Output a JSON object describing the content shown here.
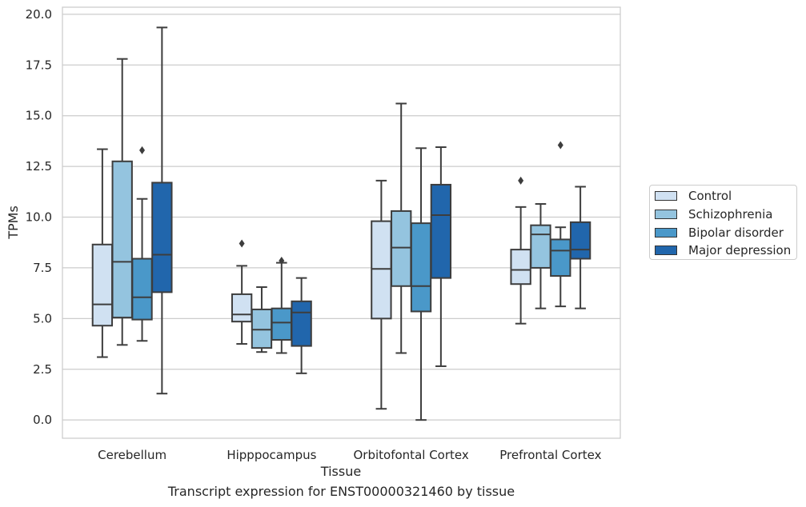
{
  "chart_data": {
    "type": "box",
    "title": "",
    "xlabel": "Tissue",
    "ylabel": "TPMs",
    "caption": "Transcript expression for ENST00000321460 by tissue",
    "ylim": [
      -0.9,
      20.35
    ],
    "yticks": [
      "0.0",
      "2.5",
      "5.0",
      "7.5",
      "10.0",
      "12.5",
      "15.0",
      "17.5",
      "20.0"
    ],
    "grid": "horizontal",
    "legend_position": "right",
    "categories": [
      "Cerebellum",
      "Hipppocampus",
      "Orbitofontal Cortex",
      "Prefrontal Cortex"
    ],
    "series": [
      {
        "name": "Control",
        "color": "#d0e1f2",
        "boxes": [
          {
            "whislo": 3.1,
            "q1": 4.65,
            "med": 5.7,
            "q3": 8.65,
            "whishi": 13.35,
            "fliers": []
          },
          {
            "whislo": 3.75,
            "q1": 4.85,
            "med": 5.2,
            "q3": 6.2,
            "whishi": 7.6,
            "fliers": [
              8.7
            ]
          },
          {
            "whislo": 0.55,
            "q1": 5.0,
            "med": 7.45,
            "q3": 9.8,
            "whishi": 11.8,
            "fliers": []
          },
          {
            "whislo": 4.75,
            "q1": 6.7,
            "med": 7.4,
            "q3": 8.4,
            "whishi": 10.5,
            "fliers": [
              11.8
            ]
          }
        ]
      },
      {
        "name": "Schizophrenia",
        "color": "#94c4df",
        "boxes": [
          {
            "whislo": 3.7,
            "q1": 5.05,
            "med": 7.8,
            "q3": 12.75,
            "whishi": 17.8,
            "fliers": []
          },
          {
            "whislo": 3.35,
            "q1": 3.55,
            "med": 4.45,
            "q3": 5.45,
            "whishi": 6.55,
            "fliers": []
          },
          {
            "whislo": 3.3,
            "q1": 6.6,
            "med": 8.5,
            "q3": 10.3,
            "whishi": 15.6,
            "fliers": []
          },
          {
            "whislo": 5.5,
            "q1": 7.5,
            "med": 9.15,
            "q3": 9.6,
            "whishi": 10.65,
            "fliers": []
          }
        ]
      },
      {
        "name": "Bipolar disorder",
        "color": "#4a98c9",
        "boxes": [
          {
            "whislo": 3.9,
            "q1": 4.95,
            "med": 6.05,
            "q3": 7.95,
            "whishi": 10.9,
            "fliers": [
              13.3
            ]
          },
          {
            "whislo": 3.3,
            "q1": 3.95,
            "med": 4.8,
            "q3": 5.5,
            "whishi": 7.75,
            "fliers": [
              7.85
            ]
          },
          {
            "whislo": 0.0,
            "q1": 5.35,
            "med": 6.6,
            "q3": 9.7,
            "whishi": 13.4,
            "fliers": []
          },
          {
            "whislo": 5.6,
            "q1": 7.1,
            "med": 8.35,
            "q3": 8.9,
            "whishi": 9.5,
            "fliers": [
              13.55
            ]
          }
        ]
      },
      {
        "name": "Major depression",
        "color": "#2166ac",
        "boxes": [
          {
            "whislo": 1.3,
            "q1": 6.3,
            "med": 8.15,
            "q3": 11.7,
            "whishi": 19.35,
            "fliers": []
          },
          {
            "whislo": 2.3,
            "q1": 3.65,
            "med": 5.3,
            "q3": 5.85,
            "whishi": 7.0,
            "fliers": []
          },
          {
            "whislo": 2.65,
            "q1": 7.0,
            "med": 10.1,
            "q3": 11.6,
            "whishi": 13.45,
            "fliers": []
          },
          {
            "whislo": 5.5,
            "q1": 7.95,
            "med": 8.4,
            "q3": 9.75,
            "whishi": 11.5,
            "fliers": []
          }
        ]
      }
    ]
  }
}
